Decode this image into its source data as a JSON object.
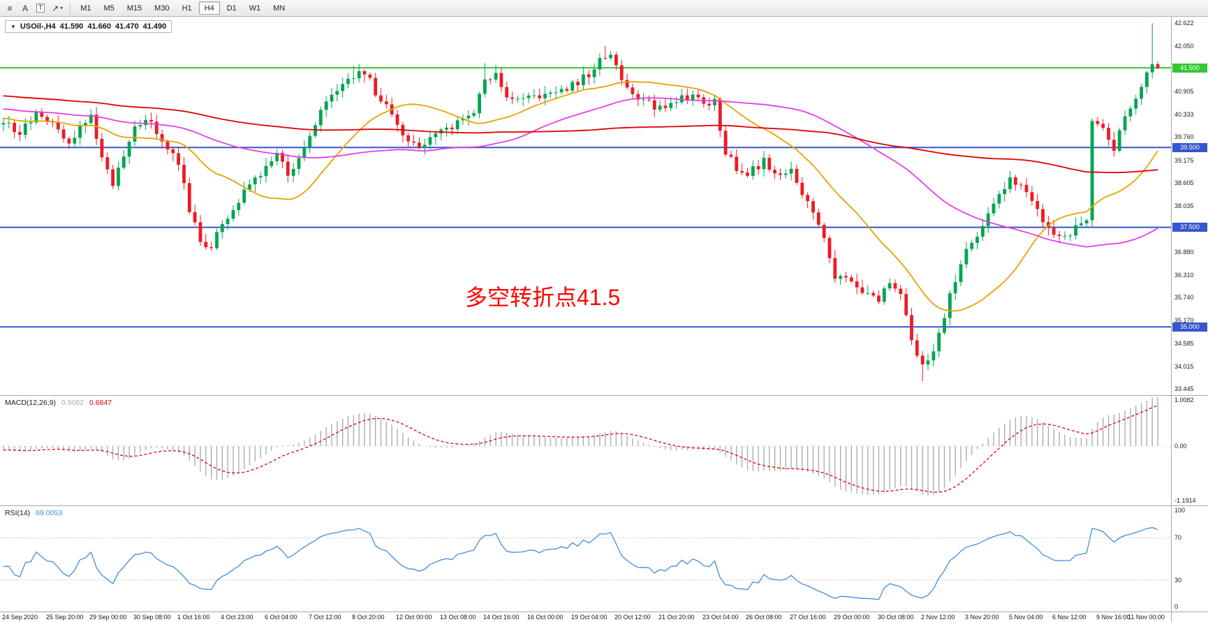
{
  "colors": {
    "up": "#00A550",
    "down": "#EC1C24",
    "background": "#FFFFFF",
    "annotation": "#FF0000",
    "level_green": "#36C636",
    "level_blue": "#3556CF"
  },
  "toolbar": {
    "tools": [
      {
        "name": "chart-list-icon",
        "glyph": "≡",
        "caret": false,
        "boxed": false
      },
      {
        "name": "text-label-tool-button",
        "glyph": "A",
        "caret": false,
        "boxed": false
      },
      {
        "name": "text-tool-button",
        "glyph": "T",
        "caret": false,
        "boxed": true
      },
      {
        "name": "arrows-tool-button",
        "glyph": "↗",
        "caret": true,
        "boxed": false
      }
    ],
    "timeframes": [
      {
        "label": "M1",
        "selected": false
      },
      {
        "label": "M5",
        "selected": false
      },
      {
        "label": "M15",
        "selected": false
      },
      {
        "label": "M30",
        "selected": false
      },
      {
        "label": "H1",
        "selected": false
      },
      {
        "label": "H4",
        "selected": true
      },
      {
        "label": "D1",
        "selected": false
      },
      {
        "label": "W1",
        "selected": false
      },
      {
        "label": "MN",
        "selected": false
      }
    ]
  },
  "chart": {
    "collapse_glyph": "▼",
    "symbol_period": "USOil-,H4",
    "ohlc": {
      "open": "41.590",
      "high": "41.660",
      "low": "41.470",
      "close": "41.490"
    },
    "annotation": "多空转折点41.5"
  },
  "macd_panel": {
    "title": "MACD(12,26,9)",
    "value_main": "0.9082",
    "value_signal": "0.6847"
  },
  "rsi_panel": {
    "title": "RSI(14)",
    "value": "69.0053"
  },
  "chart_data": {
    "type": "candlestick",
    "symbol": "USOil-",
    "timeframe": "H4",
    "bars": 212,
    "price_range": {
      "min": 33.29,
      "max": 42.78
    },
    "noise_amp": 0.1,
    "warmup": {
      "bars": 150,
      "from": 41.6,
      "to": 40.2
    },
    "close_anchors": [
      [
        0,
        40.15
      ],
      [
        3,
        39.85
      ],
      [
        6,
        40.35
      ],
      [
        9,
        40.05
      ],
      [
        12,
        39.55
      ],
      [
        14,
        40.0
      ],
      [
        16,
        40.25
      ],
      [
        18,
        39.2
      ],
      [
        20,
        38.6
      ],
      [
        22,
        39.2
      ],
      [
        24,
        40.05
      ],
      [
        27,
        40.15
      ],
      [
        30,
        39.5
      ],
      [
        32,
        39.15
      ],
      [
        34,
        37.9
      ],
      [
        36,
        37.15
      ],
      [
        38,
        37.05
      ],
      [
        40,
        37.55
      ],
      [
        43,
        38.2
      ],
      [
        46,
        38.75
      ],
      [
        48,
        38.95
      ],
      [
        50,
        39.35
      ],
      [
        52,
        38.85
      ],
      [
        54,
        39.2
      ],
      [
        56,
        39.85
      ],
      [
        59,
        40.6
      ],
      [
        62,
        41.05
      ],
      [
        64,
        41.3
      ],
      [
        66,
        41.4
      ],
      [
        68,
        40.9
      ],
      [
        70,
        40.55
      ],
      [
        72,
        40.0
      ],
      [
        74,
        39.6
      ],
      [
        77,
        39.55
      ],
      [
        80,
        39.95
      ],
      [
        83,
        40.1
      ],
      [
        86,
        40.35
      ],
      [
        88,
        41.15
      ],
      [
        90,
        41.4
      ],
      [
        92,
        40.75
      ],
      [
        94,
        40.7
      ],
      [
        96,
        40.9
      ],
      [
        99,
        40.75
      ],
      [
        102,
        40.9
      ],
      [
        104,
        41.05
      ],
      [
        107,
        41.35
      ],
      [
        109,
        41.7
      ],
      [
        111,
        41.85
      ],
      [
        112,
        41.5
      ],
      [
        114,
        41.0
      ],
      [
        117,
        40.7
      ],
      [
        120,
        40.45
      ],
      [
        123,
        40.7
      ],
      [
        126,
        40.8
      ],
      [
        128,
        40.6
      ],
      [
        130,
        40.65
      ],
      [
        132,
        39.35
      ],
      [
        134,
        39.0
      ],
      [
        136,
        38.85
      ],
      [
        139,
        39.15
      ],
      [
        142,
        38.8
      ],
      [
        144,
        38.9
      ],
      [
        146,
        38.35
      ],
      [
        149,
        37.6
      ],
      [
        152,
        36.3
      ],
      [
        155,
        36.1
      ],
      [
        157,
        35.85
      ],
      [
        160,
        35.7
      ],
      [
        162,
        36.1
      ],
      [
        164,
        35.9
      ],
      [
        166,
        34.6
      ],
      [
        168,
        34.05
      ],
      [
        170,
        34.3
      ],
      [
        172,
        35.3
      ],
      [
        174,
        36.2
      ],
      [
        176,
        36.9
      ],
      [
        179,
        37.5
      ],
      [
        182,
        38.3
      ],
      [
        184,
        38.8
      ],
      [
        186,
        38.5
      ],
      [
        189,
        37.9
      ],
      [
        192,
        37.35
      ],
      [
        194,
        37.2
      ],
      [
        196,
        37.5
      ],
      [
        198,
        37.6
      ],
      [
        199,
        40.1
      ],
      [
        201,
        39.9
      ],
      [
        203,
        39.5
      ],
      [
        205,
        40.3
      ],
      [
        207,
        40.7
      ],
      [
        208,
        41.0
      ],
      [
        209,
        41.3
      ],
      [
        210,
        41.6
      ],
      [
        211,
        41.49
      ]
    ],
    "overrides": {
      "64": {
        "high": 41.55
      },
      "88": {
        "high": 41.62
      },
      "110": {
        "high": 42.05
      },
      "168": {
        "low": 33.64
      },
      "210": {
        "high": 42.62
      },
      "211": {
        "open": 41.59,
        "high": 41.66,
        "low": 41.47,
        "close": 41.49
      }
    },
    "moving_averages": [
      {
        "period": 20,
        "color": "#E8A200",
        "name": "ma-fast"
      },
      {
        "period": 60,
        "color": "#E53EE5",
        "name": "ma-mid"
      },
      {
        "period": 130,
        "color": "#E00000",
        "name": "ma-slow"
      }
    ],
    "levels": [
      {
        "price": 41.5,
        "color": "#36C636",
        "tag": "41.500"
      },
      {
        "price": 39.5,
        "color": "#3556CF",
        "tag": "39.500"
      },
      {
        "price": 37.5,
        "color": "#3556CF",
        "tag": "37.500"
      },
      {
        "price": 35.0,
        "color": "#3556CF",
        "tag": "35.000"
      }
    ],
    "price_axis_labels": [
      "42.622",
      "42.050",
      "40.905",
      "40.333",
      "39.760",
      "39.175",
      "38.605",
      "38.035",
      "36.880",
      "36.310",
      "35.740",
      "35.170",
      "34.585",
      "34.015",
      "33.445"
    ],
    "macd": {
      "fast": 12,
      "slow": 26,
      "signal": 9,
      "axis_labels": [
        "1.0082",
        "0.00",
        "-1.1914"
      ],
      "axis_max": 1.0082,
      "axis_min": -1.1914,
      "hist_color": "#ADADAD",
      "signal_color": "#E00000"
    },
    "rsi": {
      "period": 14,
      "levels": [
        70,
        30
      ],
      "axis_labels": [
        "100",
        "70",
        "30",
        "0"
      ],
      "color": "#3E8EDE"
    },
    "label_every_bars": 8,
    "time_labels": [
      "24 Sep 2020",
      "25 Sep 20:00",
      "29 Sep 00:00",
      "30 Sep 08:00",
      "1 Oct 16:00",
      "4 Oct 23:00",
      "6 Oct 04:00",
      "7 Oct 12:00",
      "8 Oct 20:00",
      "12 Oct 00:00",
      "13 Oct 08:00",
      "14 Oct 16:00",
      "16 Oct 00:00",
      "19 Oct 04:00",
      "20 Oct 12:00",
      "21 Oct 20:00",
      "23 Oct 04:00",
      "26 Oct 08:00",
      "27 Oct 16:00",
      "29 Oct 00:00",
      "30 Oct 08:00",
      "2 Nov 12:00",
      "3 Nov 20:00",
      "5 Nov 04:00",
      "6 Nov 12:00",
      "9 Nov 16:00",
      "11 Nov 00:00"
    ]
  }
}
